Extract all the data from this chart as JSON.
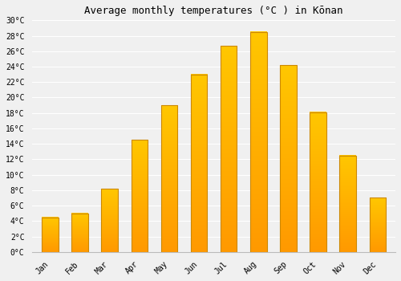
{
  "title": "Average monthly temperatures (°C ) in Kōnan",
  "months": [
    "Jan",
    "Feb",
    "Mar",
    "Apr",
    "May",
    "Jun",
    "Jul",
    "Aug",
    "Sep",
    "Oct",
    "Nov",
    "Dec"
  ],
  "values": [
    4.5,
    5.0,
    8.2,
    14.5,
    19.0,
    23.0,
    26.7,
    28.5,
    24.2,
    18.1,
    12.5,
    7.0
  ],
  "bar_color_bottom": "#FFB700",
  "bar_color_top": "#FF9900",
  "bar_edge_color": "#CC8800",
  "ylim": [
    0,
    30
  ],
  "yticks": [
    0,
    2,
    4,
    6,
    8,
    10,
    12,
    14,
    16,
    18,
    20,
    22,
    24,
    26,
    28,
    30
  ],
  "ytick_labels": [
    "0°C",
    "2°C",
    "4°C",
    "6°C",
    "8°C",
    "10°C",
    "12°C",
    "14°C",
    "16°C",
    "18°C",
    "20°C",
    "22°C",
    "24°C",
    "26°C",
    "28°C",
    "30°C"
  ],
  "background_color": "#f0f0f0",
  "grid_color": "#ffffff",
  "title_fontsize": 9,
  "tick_fontsize": 7,
  "font_family": "monospace",
  "bar_width": 0.55
}
